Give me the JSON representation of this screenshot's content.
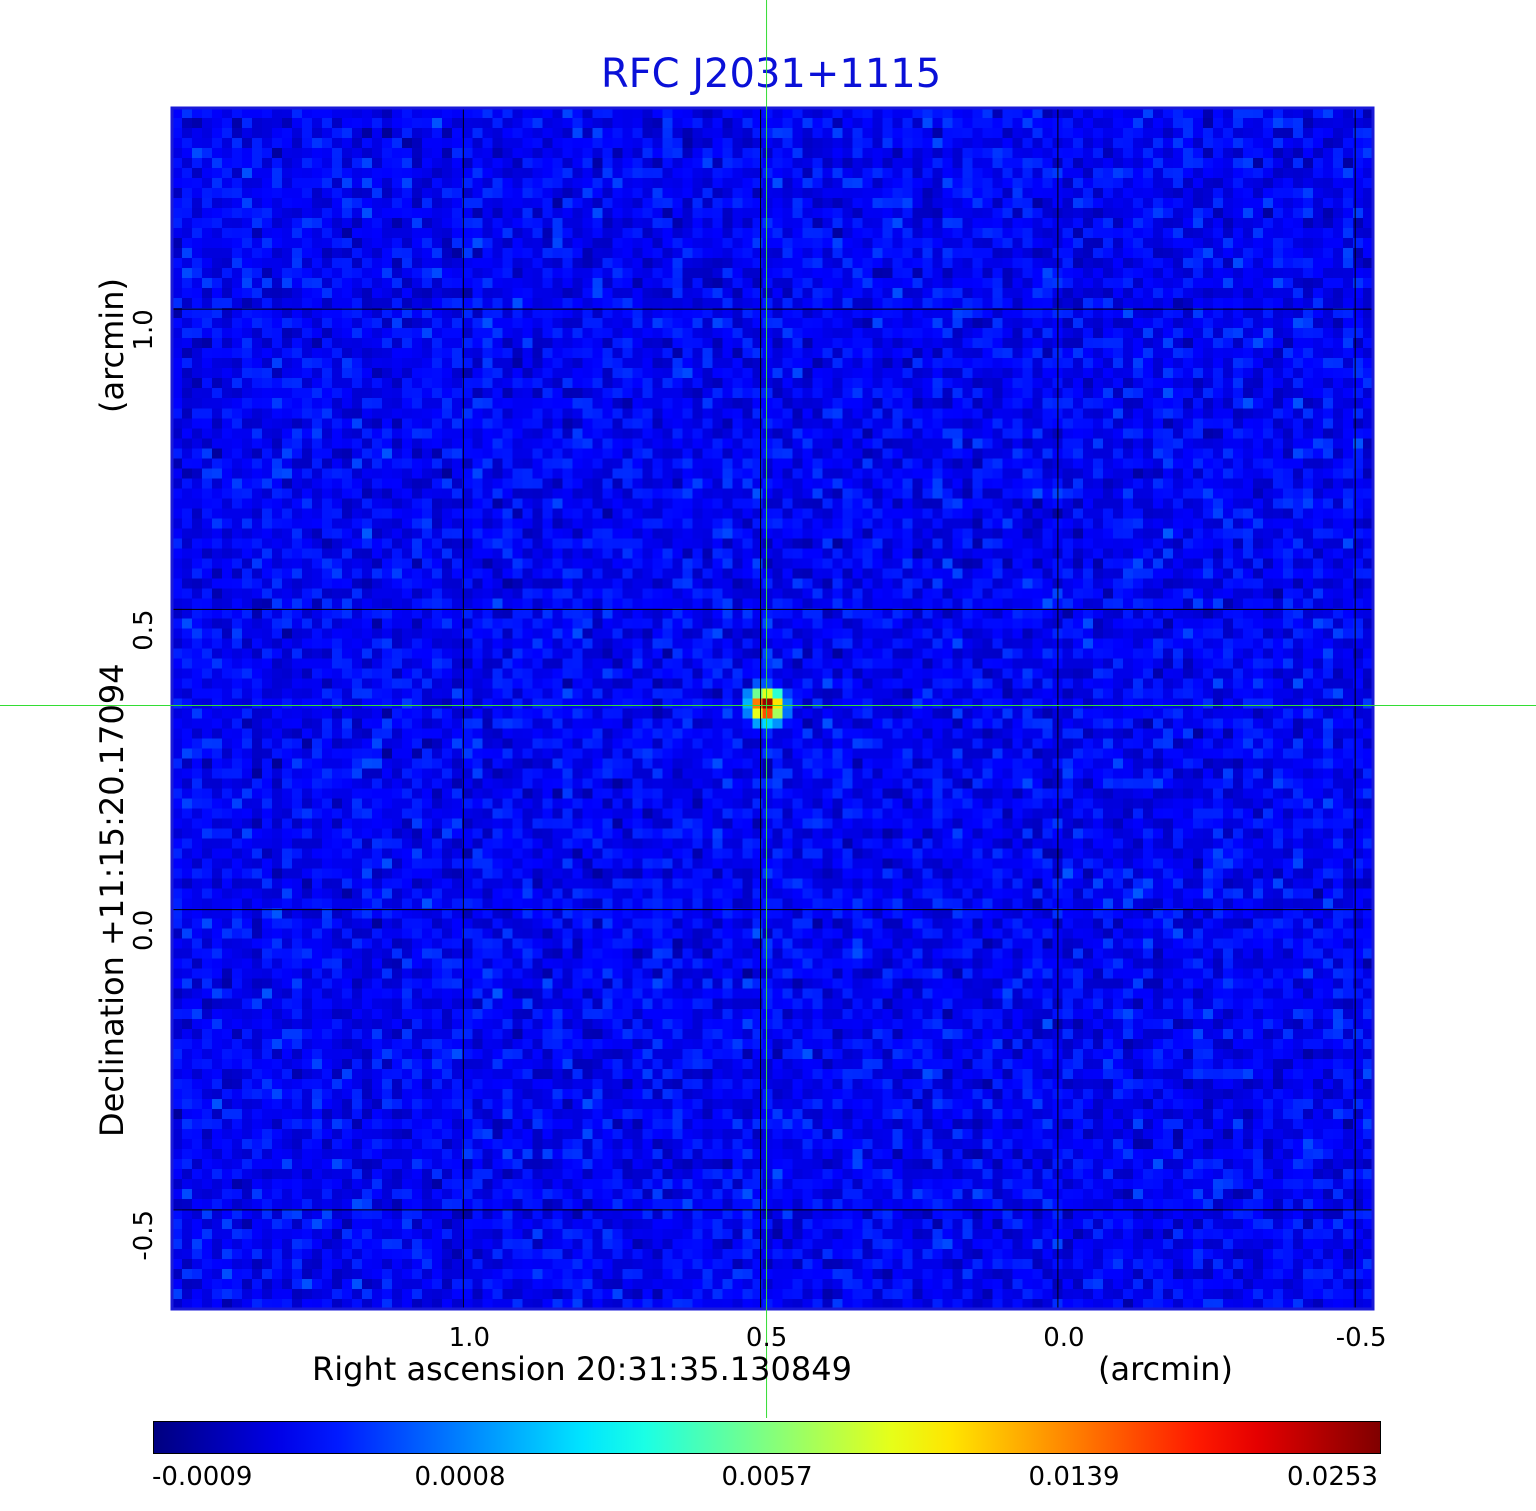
{
  "chart_data": {
    "type": "heatmap",
    "title": "RFC J2031+1115",
    "xlabel": "Right ascension  20:31:35.130849",
    "xunit": "(arcmin)",
    "ylabel": "Declination  +11:15:20.17094",
    "yunit": "(arcmin)",
    "xlim": [
      1.49,
      -0.53
    ],
    "ylim": [
      -0.665,
      1.335
    ],
    "x_ticks": [
      1.0,
      0.5,
      0.0,
      -0.5
    ],
    "x_tick_labels": [
      "1.0",
      "0.5",
      "0.0",
      "-0.5"
    ],
    "y_ticks": [
      1.0,
      0.5,
      0.0,
      -0.5
    ],
    "y_tick_labels": [
      "1.0",
      "0.5",
      "0.0",
      "-0.5"
    ],
    "grid": true,
    "crosshair": {
      "x": 0.49,
      "y": 0.34
    },
    "colormap": "jet",
    "colorbar": {
      "ticks": [
        -0.0009,
        0.0008,
        0.0057,
        0.0139,
        0.0253
      ],
      "tick_labels": [
        "-0.0009",
        "0.0008",
        "0.0057",
        "0.0139",
        "0.0253"
      ],
      "range": [
        -0.0009,
        0.0253
      ]
    },
    "source": {
      "x": 0.49,
      "y": 0.34,
      "peak": 0.0253
    },
    "background_level": -0.0001
  },
  "colors": {
    "title": "#0a10d8",
    "frame": "#1a1ad8",
    "grid": "#000000",
    "crosshair": "#33dd33"
  }
}
